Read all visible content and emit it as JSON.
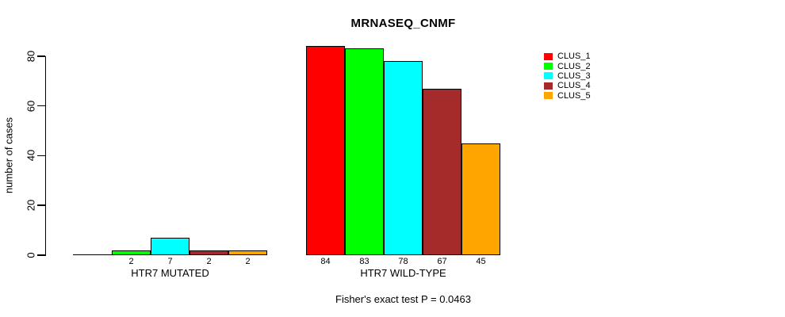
{
  "page": {
    "background": "#ffffff",
    "text_color": "#000000"
  },
  "chart_data": {
    "type": "bar",
    "title": "MRNASEQ_CNMF",
    "ylabel": "number of cases",
    "xlabel": "",
    "ylim": [
      0,
      80
    ],
    "yticks": [
      0,
      20,
      40,
      60,
      80
    ],
    "grid": false,
    "legend_position": "right",
    "categories": [
      "HTR7 MUTATED",
      "HTR7 WILD-TYPE"
    ],
    "series": [
      {
        "name": "CLUS_1",
        "color": "#FF0000",
        "values": [
          0,
          84
        ]
      },
      {
        "name": "CLUS_2",
        "color": "#00FF00",
        "values": [
          2,
          83
        ]
      },
      {
        "name": "CLUS_3",
        "color": "#00FFFF",
        "values": [
          7,
          78
        ]
      },
      {
        "name": "CLUS_4",
        "color": "#A52A2A",
        "values": [
          2,
          67
        ]
      },
      {
        "name": "CLUS_5",
        "color": "#FFA500",
        "values": [
          2,
          45
        ]
      }
    ],
    "bar_value_labels": [
      [
        "",
        "2",
        "7",
        "2",
        "2"
      ],
      [
        "84",
        "83",
        "78",
        "67",
        "45"
      ]
    ],
    "footnote": "Fisher's exact test P = 0.0463"
  }
}
